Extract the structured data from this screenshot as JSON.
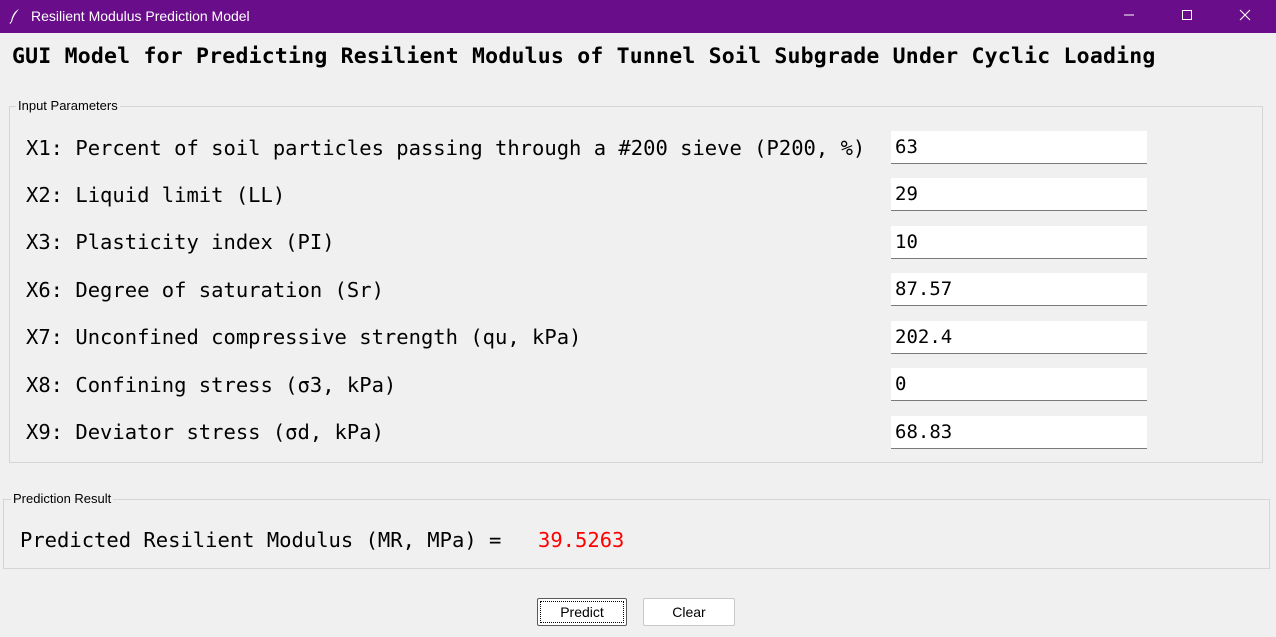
{
  "window": {
    "title": "Resilient Modulus Prediction Model",
    "icon": "feather-icon",
    "controls": [
      "minimize-icon",
      "maximize-icon",
      "close-icon"
    ],
    "titlebar_color": "#6a0d8a"
  },
  "heading": "GUI Model for Predicting Resilient Modulus of Tunnel Soil Subgrade Under Cyclic Loading",
  "inputs_group": {
    "legend": "Input Parameters",
    "params": [
      {
        "label": "X1: Percent of soil particles passing through a #200 sieve (P200, %)",
        "value": "63"
      },
      {
        "label": "X2: Liquid limit (LL)",
        "value": "29"
      },
      {
        "label": "X3: Plasticity index (PI)",
        "value": "10"
      },
      {
        "label": "X6: Degree of saturation (Sr)",
        "value": "87.57"
      },
      {
        "label": "X7: Unconfined compressive strength (qu, kPa)",
        "value": "202.4"
      },
      {
        "label": "X8: Confining stress (σ3, kPa)",
        "value": "0"
      },
      {
        "label": "X9: Deviator stress (σd, kPa)",
        "value": "68.83"
      }
    ]
  },
  "result_group": {
    "legend": "Prediction Result",
    "label": "Predicted Resilient Modulus (MR, MPa) =",
    "value": "39.5263",
    "value_color": "#ff0000"
  },
  "buttons": {
    "predict": "Predict",
    "clear": "Clear"
  }
}
